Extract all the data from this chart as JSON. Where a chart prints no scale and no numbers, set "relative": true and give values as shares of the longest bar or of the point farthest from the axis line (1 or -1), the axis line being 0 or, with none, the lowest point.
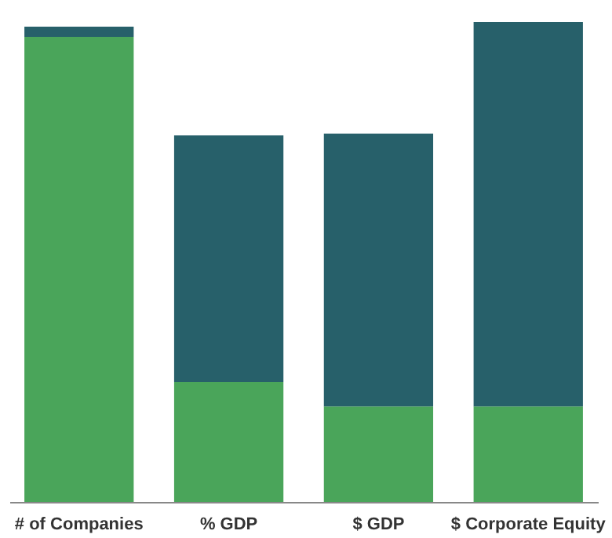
{
  "chart_data": {
    "type": "bar",
    "relative": true,
    "stacked": true,
    "legend": false,
    "categories": [
      "# of Companies",
      "% GDP",
      "$ GDP",
      "$ Corporate Equity"
    ],
    "series": [
      {
        "color": "#4aa55a",
        "values": [
          0.969,
          0.25,
          0.199,
          0.199
        ]
      },
      {
        "color": "#27606a",
        "values": [
          0.021,
          0.514,
          0.568,
          0.801
        ]
      }
    ]
  }
}
